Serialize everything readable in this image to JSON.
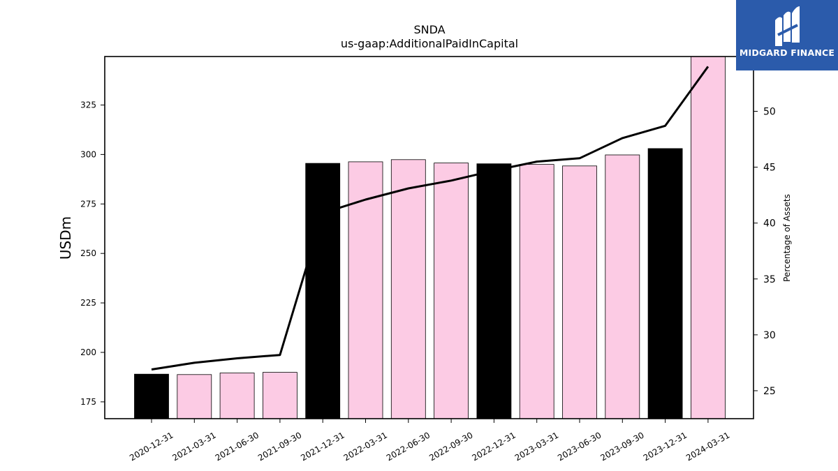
{
  "chart_data": {
    "type": "bar",
    "title": "SNDA",
    "subtitle": "us-gaap:AdditionalPaidInCapital",
    "ylabel": "USDm",
    "y2label": "Percentage of Assets",
    "categories": [
      "2020-12-31",
      "2021-03-31",
      "2021-06-30",
      "2021-09-30",
      "2021-12-31",
      "2022-03-31",
      "2022-06-30",
      "2022-09-30",
      "2022-12-31",
      "2023-03-31",
      "2023-06-30",
      "2023-09-30",
      "2023-12-31",
      "2024-03-31"
    ],
    "series": [
      {
        "type": "bar",
        "values": [
          189.0,
          188.8,
          189.6,
          189.9,
          295.5,
          296.3,
          297.4,
          295.7,
          295.3,
          295.0,
          294.2,
          299.8,
          303.0,
          351.0
        ],
        "highlight": [
          true,
          false,
          false,
          false,
          true,
          false,
          false,
          false,
          true,
          false,
          false,
          false,
          true,
          false
        ],
        "colors": {
          "highlight": "#000000",
          "normal": "#fccbe4"
        }
      },
      {
        "type": "line",
        "axis": "right",
        "values": [
          26.9,
          27.5,
          27.9,
          28.2,
          40.9,
          42.1,
          43.1,
          43.8,
          44.7,
          45.5,
          45.8,
          47.6,
          48.7,
          54.0
        ],
        "color": "#000000"
      }
    ],
    "ylim": [
      166.5,
      349.5
    ],
    "yticks": [
      175,
      200,
      225,
      250,
      275,
      300,
      325
    ],
    "y2lim": [
      22.5,
      54.9
    ],
    "y2ticks": [
      25,
      30,
      35,
      40,
      45,
      50
    ],
    "grid": false
  },
  "logo": {
    "text": "MIDGARD FINANCE"
  }
}
